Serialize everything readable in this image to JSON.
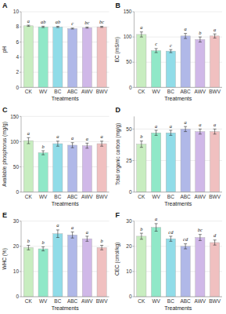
{
  "chart_data": [
    {
      "type": "bar",
      "title": "A",
      "xlabel": "Treatments",
      "ylabel": "pH",
      "categories": [
        "CK",
        "WV",
        "BC",
        "ABC",
        "AWV",
        "BWV"
      ],
      "values": [
        8.15,
        8.0,
        8.0,
        7.78,
        7.9,
        8.0
      ],
      "errors": [
        0.08,
        0.09,
        0.08,
        0.06,
        0.07,
        0.07
      ],
      "annotations": [
        "a",
        "ab",
        "ab",
        "c",
        "bc",
        "bc"
      ],
      "colors": [
        "#c8edc0",
        "#90e8c8",
        "#90dce8",
        "#b0b8e8",
        "#d0b8e8",
        "#f0c0c0"
      ],
      "ylim": [
        0,
        10
      ],
      "yticks": [
        0,
        2,
        4,
        6,
        8,
        10
      ],
      "grid": true
    },
    {
      "type": "bar",
      "title": "B",
      "xlabel": "Treatments",
      "ylabel": "EC (mS/m)",
      "categories": [
        "CK",
        "WV",
        "BC",
        "ABC",
        "AWV",
        "BWV"
      ],
      "values": [
        105,
        73,
        72,
        102,
        95,
        102
      ],
      "errors": [
        5,
        4,
        3,
        5,
        5,
        4
      ],
      "annotations": [
        "a",
        "c",
        "c",
        "a",
        "b",
        "a"
      ],
      "colors": [
        "#c8edc0",
        "#90e8c8",
        "#90dce8",
        "#b0b8e8",
        "#d0b8e8",
        "#f0c0c0"
      ],
      "ylim": [
        0,
        150
      ],
      "yticks": [
        0,
        50,
        100,
        150
      ],
      "grid": true
    },
    {
      "type": "bar",
      "title": "C",
      "xlabel": "Treatments",
      "ylabel": "Available phosphorus (mg/g)",
      "categories": [
        "CK",
        "WV",
        "BC",
        "ABC",
        "AWV",
        "BWV"
      ],
      "values": [
        102,
        78,
        96,
        93,
        92,
        96
      ],
      "errors": [
        6,
        4,
        5,
        5,
        5,
        5
      ],
      "annotations": [
        "a",
        "b",
        "a",
        "a",
        "a",
        "a"
      ],
      "colors": [
        "#c8edc0",
        "#90e8c8",
        "#90dce8",
        "#b0b8e8",
        "#d0b8e8",
        "#f0c0c0"
      ],
      "ylim": [
        0,
        150
      ],
      "yticks": [
        0,
        50,
        100,
        150
      ],
      "grid": true
    },
    {
      "type": "bar",
      "title": "D",
      "xlabel": "Treatments",
      "ylabel": "Total organic carbon (mg/g)",
      "categories": [
        "CK",
        "WV",
        "BC",
        "ABC",
        "AWV",
        "BWV"
      ],
      "values": [
        38,
        47,
        47,
        50,
        48,
        48
      ],
      "errors": [
        2.5,
        2,
        2,
        2,
        2,
        2
      ],
      "annotations": [
        "b",
        "a",
        "a",
        "a",
        "a",
        "a"
      ],
      "colors": [
        "#c8edc0",
        "#90e8c8",
        "#90dce8",
        "#b0b8e8",
        "#d0b8e8",
        "#f0c0c0"
      ],
      "ylim": [
        0,
        60
      ],
      "yticks": [
        0,
        25,
        50
      ],
      "grid": true
    },
    {
      "type": "bar",
      "title": "E",
      "xlabel": "Treatments",
      "ylabel": "WHC (%)",
      "categories": [
        "CK",
        "WV",
        "BC",
        "ABC",
        "AWV",
        "BWV"
      ],
      "values": [
        19.5,
        19.0,
        25.0,
        24.5,
        23.0,
        19.5
      ],
      "errors": [
        0.9,
        0.8,
        1.5,
        1.2,
        1.0,
        0.9
      ],
      "annotations": [
        "b",
        "b",
        "a",
        "a",
        "a",
        "b"
      ],
      "colors": [
        "#c8edc0",
        "#90e8c8",
        "#90dce8",
        "#b0b8e8",
        "#d0b8e8",
        "#f0c0c0"
      ],
      "ylim": [
        0,
        30
      ],
      "yticks": [
        0,
        10,
        20,
        30
      ],
      "grid": true
    },
    {
      "type": "bar",
      "title": "F",
      "xlabel": "Treatments",
      "ylabel": "CEC (cmol/kg)",
      "categories": [
        "CK",
        "WV",
        "BC",
        "ABC",
        "AWV",
        "BWV"
      ],
      "values": [
        24.0,
        27.5,
        23.0,
        20.0,
        23.5,
        21.5
      ],
      "errors": [
        1.2,
        1.5,
        1.0,
        1.0,
        1.2,
        1.0
      ],
      "annotations": [
        "b",
        "a",
        "cd",
        "cd",
        "bc",
        "d"
      ],
      "colors": [
        "#c8edc0",
        "#90e8c8",
        "#90dce8",
        "#b0b8e8",
        "#d0b8e8",
        "#f0c0c0"
      ],
      "ylim": [
        0,
        30
      ],
      "yticks": [
        0,
        10,
        20,
        30
      ],
      "grid": true
    }
  ]
}
